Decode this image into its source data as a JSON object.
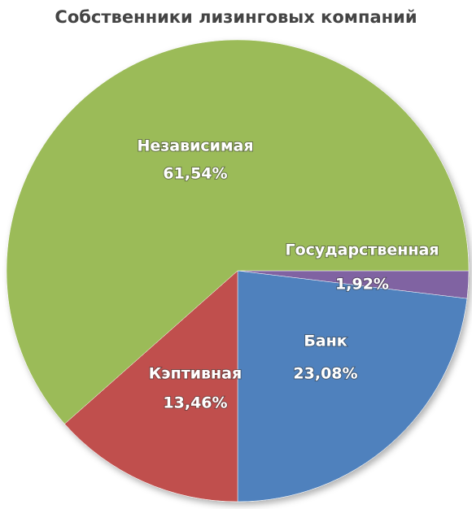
{
  "chart_data": {
    "type": "pie",
    "title": "Собственники лизинговых компаний",
    "categories": [
      "Государственная",
      "Банк",
      "Кэптивная",
      "Независимая"
    ],
    "values": [
      1.92,
      23.08,
      13.46,
      61.54
    ],
    "value_labels": [
      "1,92%",
      "23,08%",
      "13,46%",
      "61,54%"
    ],
    "colors": [
      "#8064a2",
      "#4f81bd",
      "#c0504d",
      "#9bbb59"
    ]
  }
}
